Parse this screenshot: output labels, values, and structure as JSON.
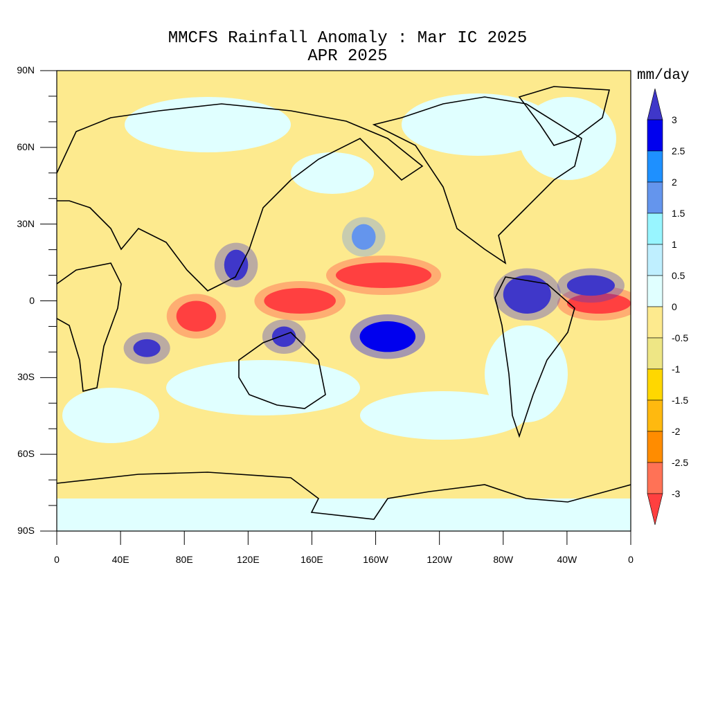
{
  "title": "MMCFS Rainfall Anomaly : Mar IC 2025",
  "subtitle": "APR 2025",
  "units": "mm/day",
  "lat_labels": [
    "90N",
    "60N",
    "30N",
    "0",
    "30S",
    "60S",
    "90S"
  ],
  "lon_labels": [
    "0",
    "40E",
    "80E",
    "120E",
    "160E",
    "160W",
    "120W",
    "80W",
    "40W",
    "0"
  ],
  "colorbar": {
    "labels": [
      "3",
      "2.5",
      "2",
      "1.5",
      "1",
      "0.5",
      "0",
      "-0.5",
      "-1",
      "-1.5",
      "-2",
      "-2.5",
      "-3"
    ],
    "colors": [
      "#3f37c9",
      "#0000ee",
      "#1e90ff",
      "#6495ed",
      "#98f5ff",
      "#bfefff",
      "#e0ffff",
      "#fdea8e",
      "#eee685",
      "#ffd700",
      "#ffb90f",
      "#ff8c00",
      "#ff7256",
      "#ff4040"
    ]
  },
  "map": {
    "projection": "cylindrical-equidistant",
    "lon_range": [
      0,
      360
    ],
    "lat_range": [
      -90,
      90
    ],
    "background_color": "#fdea8e",
    "anomaly_regions": [
      {
        "lon": [
          130,
          175
        ],
        "lat": [
          -5,
          5
        ],
        "color": "#ff4040"
      },
      {
        "lon": [
          175,
          235
        ],
        "lat": [
          5,
          15
        ],
        "color": "#ff4040"
      },
      {
        "lon": [
          75,
          100
        ],
        "lat": [
          -12,
          0
        ],
        "color": "#ff4040"
      },
      {
        "lon": [
          320,
          360
        ],
        "lat": [
          -5,
          3
        ],
        "color": "#ff4040"
      },
      {
        "lon": [
          105,
          120
        ],
        "lat": [
          8,
          20
        ],
        "color": "#3f37c9"
      },
      {
        "lon": [
          280,
          310
        ],
        "lat": [
          -5,
          10
        ],
        "color": "#3f37c9"
      },
      {
        "lon": [
          320,
          350
        ],
        "lat": [
          2,
          10
        ],
        "color": "#3f37c9"
      },
      {
        "lon": [
          48,
          65
        ],
        "lat": [
          -22,
          -15
        ],
        "color": "#3f37c9"
      },
      {
        "lon": [
          190,
          225
        ],
        "lat": [
          -20,
          -8
        ],
        "color": "#0000ee"
      },
      {
        "lon": [
          185,
          200
        ],
        "lat": [
          20,
          30
        ],
        "color": "#6495ed"
      },
      {
        "lon": [
          135,
          150
        ],
        "lat": [
          -18,
          -10
        ],
        "color": "#3f37c9"
      }
    ]
  }
}
